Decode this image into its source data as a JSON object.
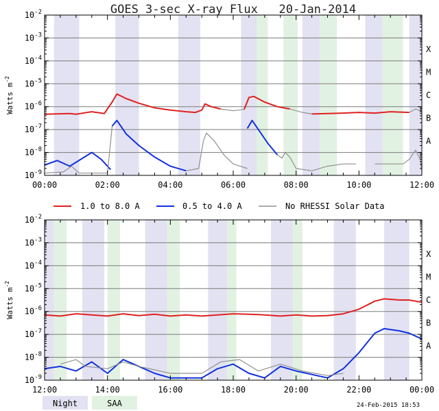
{
  "title": "GOES 3-sec X-ray Flux   20-Jan-2014",
  "ylabel_main": "Watts m",
  "ylabel_sup": "-2",
  "colors": {
    "long": "#e02020",
    "short": "#1030e0",
    "norhessi": "#909090",
    "night": "#e2e2f2",
    "saa": "#e2f2e2",
    "grid": "#7a7a7a",
    "axis": "#000000"
  },
  "legend": {
    "items": [
      {
        "label": "1.0 to 8.0 A",
        "color": "#e02020"
      },
      {
        "label": "0.5 to 4.0 A",
        "color": "#1030e0"
      },
      {
        "label": "No RHESSI Solar Data",
        "color": "#909090"
      }
    ],
    "night_label": "Night",
    "saa_label": "SAA"
  },
  "timestamp": "24-Feb-2015 18:53",
  "chart_data": [
    {
      "type": "line",
      "title": "GOES 3-sec X-ray Flux   20-Jan-2014",
      "ylabel": "Watts m-2",
      "yscale": "log",
      "ylim": [
        -9,
        -2
      ],
      "xlim": [
        0,
        12
      ],
      "x_ticks": [
        "00:00",
        "02:00",
        "04:00",
        "06:00",
        "08:00",
        "10:00",
        "12:00"
      ],
      "y_ticks": [
        "10-9",
        "10-8",
        "10-7",
        "10-6",
        "10-5",
        "10-4",
        "10-3",
        "10-2"
      ],
      "flare_classes": [
        "A",
        "B",
        "C",
        "M",
        "X"
      ],
      "night": [
        [
          0.3,
          1.1
        ],
        [
          2.25,
          3.0
        ],
        [
          4.25,
          4.95
        ],
        [
          6.25,
          6.75
        ],
        [
          8.2,
          8.75
        ],
        [
          10.2,
          10.75
        ],
        [
          11.6,
          12.0
        ]
      ],
      "saa": [
        [
          6.75,
          7.1
        ],
        [
          7.6,
          8.05
        ],
        [
          8.75,
          9.3
        ],
        [
          10.75,
          11.4
        ]
      ],
      "series": [
        {
          "name": "1.0 to 8.0 A",
          "points": [
            [
              0.0,
              -6.33
            ],
            [
              0.8,
              -6.3
            ],
            [
              1.0,
              -6.33
            ],
            [
              1.5,
              -6.22
            ],
            [
              1.9,
              -6.3
            ],
            [
              2.15,
              -5.8
            ],
            [
              2.3,
              -5.45
            ],
            [
              2.6,
              -5.65
            ],
            [
              3.0,
              -5.85
            ],
            [
              3.5,
              -6.05
            ],
            [
              4.0,
              -6.15
            ],
            [
              4.5,
              -6.22
            ],
            [
              4.8,
              -6.25
            ],
            [
              5.0,
              -6.15
            ],
            [
              5.1,
              -5.88
            ],
            [
              5.3,
              -6.0
            ],
            [
              5.6,
              -6.1
            ]
          ]
        },
        {
          "name": "1.0 to 8.0 A",
          "points": [
            [
              6.35,
              -6.12
            ],
            [
              6.5,
              -5.6
            ],
            [
              6.65,
              -5.55
            ],
            [
              7.0,
              -5.8
            ],
            [
              7.4,
              -6.0
            ],
            [
              7.8,
              -6.1
            ]
          ]
        },
        {
          "name": "1.0 to 8.0 A",
          "points": [
            [
              8.5,
              -6.32
            ],
            [
              9.0,
              -6.3
            ],
            [
              9.5,
              -6.28
            ],
            [
              10.0,
              -6.25
            ],
            [
              10.5,
              -6.28
            ],
            [
              11.0,
              -6.22
            ],
            [
              11.6,
              -6.25
            ]
          ]
        },
        {
          "name": "No RHESSI Solar Data",
          "points": [
            [
              5.6,
              -6.1
            ],
            [
              6.0,
              -6.18
            ],
            [
              6.35,
              -6.12
            ]
          ]
        },
        {
          "name": "No RHESSI Solar Data",
          "points": [
            [
              7.8,
              -6.1
            ],
            [
              8.2,
              -6.25
            ],
            [
              8.5,
              -6.32
            ]
          ]
        },
        {
          "name": "No RHESSI Solar Data",
          "points": [
            [
              11.6,
              -6.25
            ],
            [
              11.8,
              -6.1
            ],
            [
              12.0,
              -6.22
            ]
          ]
        },
        {
          "name": "0.5 to 4.0 A",
          "points": [
            [
              0.0,
              -8.55
            ],
            [
              0.4,
              -8.35
            ],
            [
              0.8,
              -8.6
            ],
            [
              1.15,
              -8.3
            ],
            [
              1.5,
              -8.0
            ],
            [
              1.8,
              -8.3
            ],
            [
              2.1,
              -8.75
            ]
          ]
        },
        {
          "name": "0.5 to 4.0 A",
          "points": [
            [
              2.15,
              -6.85
            ],
            [
              2.3,
              -6.6
            ],
            [
              2.6,
              -7.2
            ],
            [
              3.0,
              -7.7
            ],
            [
              3.5,
              -8.2
            ],
            [
              4.0,
              -8.6
            ],
            [
              4.5,
              -8.8
            ]
          ]
        },
        {
          "name": "0.5 to 4.0 A",
          "points": [
            [
              6.45,
              -6.95
            ],
            [
              6.6,
              -6.6
            ],
            [
              6.8,
              -7.0
            ],
            [
              7.1,
              -7.6
            ],
            [
              7.4,
              -8.1
            ]
          ]
        },
        {
          "name": "No RHESSI Solar Data",
          "points": [
            [
              2.0,
              -8.9
            ],
            [
              2.15,
              -6.85
            ]
          ]
        },
        {
          "name": "No RHESSI Solar Data",
          "points": [
            [
              4.5,
              -8.8
            ],
            [
              4.9,
              -8.7
            ],
            [
              5.05,
              -7.5
            ],
            [
              5.15,
              -7.15
            ],
            [
              5.4,
              -7.5
            ],
            [
              5.7,
              -8.1
            ],
            [
              6.0,
              -8.5
            ],
            [
              6.45,
              -8.7
            ]
          ]
        },
        {
          "name": "No RHESSI Solar Data",
          "points": [
            [
              7.4,
              -8.1
            ],
            [
              7.55,
              -8.25
            ],
            [
              7.65,
              -8.0
            ],
            [
              7.8,
              -8.2
            ],
            [
              8.0,
              -8.7
            ],
            [
              8.5,
              -8.8
            ],
            [
              9.0,
              -8.6
            ],
            [
              9.5,
              -8.5
            ],
            [
              9.9,
              -8.5
            ]
          ]
        },
        {
          "name": "No RHESSI Solar Data",
          "points": [
            [
              10.5,
              -8.5
            ],
            [
              11.0,
              -8.5
            ],
            [
              11.4,
              -8.5
            ],
            [
              11.6,
              -8.3
            ],
            [
              11.8,
              -7.9
            ],
            [
              11.95,
              -8.3
            ],
            [
              12.0,
              -8.8
            ]
          ]
        },
        {
          "name": "No RHESSI Solar Data",
          "points": [
            [
              0.0,
              -8.9
            ],
            [
              0.6,
              -8.85
            ],
            [
              0.85,
              -8.6
            ],
            [
              1.1,
              -8.9
            ],
            [
              1.7,
              -8.9
            ],
            [
              2.0,
              -8.9
            ]
          ]
        }
      ]
    },
    {
      "type": "line",
      "ylabel": "Watts m-2",
      "yscale": "log",
      "ylim": [
        -9,
        -2
      ],
      "xlim": [
        12,
        24
      ],
      "x_ticks": [
        "12:00",
        "14:00",
        "16:00",
        "18:00",
        "20:00",
        "22:00",
        "00:00"
      ],
      "y_ticks": [
        "10-9",
        "10-8",
        "10-7",
        "10-6",
        "10-5",
        "10-4",
        "10-3",
        "10-2"
      ],
      "flare_classes": [
        "A",
        "B",
        "C",
        "M",
        "X"
      ],
      "night": [
        [
          12.0,
          12.3
        ],
        [
          13.2,
          13.9
        ],
        [
          15.2,
          15.9
        ],
        [
          17.2,
          17.9
        ],
        [
          19.2,
          19.9
        ],
        [
          21.2,
          21.9
        ],
        [
          22.8,
          23.6
        ]
      ],
      "saa": [
        [
          12.3,
          12.7
        ],
        [
          14.0,
          14.4
        ],
        [
          15.9,
          16.3
        ],
        [
          17.8,
          18.1
        ],
        [
          19.9,
          20.2
        ]
      ],
      "series": [
        {
          "name": "1.0 to 8.0 A",
          "points": [
            [
              12.0,
              -6.15
            ],
            [
              12.5,
              -6.2
            ],
            [
              13.0,
              -6.1
            ],
            [
              13.5,
              -6.15
            ],
            [
              14.0,
              -6.2
            ],
            [
              14.5,
              -6.1
            ],
            [
              15.0,
              -6.18
            ],
            [
              15.5,
              -6.12
            ],
            [
              16.0,
              -6.2
            ],
            [
              16.5,
              -6.15
            ],
            [
              17.0,
              -6.2
            ],
            [
              17.5,
              -6.15
            ],
            [
              18.0,
              -6.1
            ],
            [
              18.5,
              -6.12
            ],
            [
              19.0,
              -6.15
            ],
            [
              19.5,
              -6.2
            ],
            [
              20.0,
              -6.15
            ],
            [
              20.5,
              -6.2
            ],
            [
              21.0,
              -6.18
            ],
            [
              21.5,
              -6.1
            ],
            [
              22.0,
              -5.9
            ],
            [
              22.5,
              -5.55
            ],
            [
              22.8,
              -5.45
            ],
            [
              23.3,
              -5.5
            ],
            [
              23.6,
              -5.5
            ],
            [
              24.0,
              -5.6
            ]
          ]
        },
        {
          "name": "0.5 to 4.0 A",
          "points": [
            [
              12.0,
              -8.5
            ],
            [
              12.5,
              -8.4
            ],
            [
              13.0,
              -8.6
            ],
            [
              13.5,
              -8.2
            ],
            [
              14.0,
              -8.7
            ],
            [
              14.5,
              -8.1
            ],
            [
              15.0,
              -8.4
            ],
            [
              15.5,
              -8.7
            ],
            [
              16.0,
              -8.9
            ],
            [
              17.0,
              -8.9
            ],
            [
              17.5,
              -8.5
            ],
            [
              18.0,
              -8.3
            ],
            [
              18.5,
              -8.7
            ],
            [
              19.0,
              -8.9
            ],
            [
              19.5,
              -8.4
            ],
            [
              20.0,
              -8.6
            ],
            [
              21.0,
              -8.9
            ],
            [
              21.5,
              -8.5
            ],
            [
              22.0,
              -7.8
            ],
            [
              22.5,
              -6.95
            ],
            [
              22.8,
              -6.75
            ],
            [
              23.3,
              -6.85
            ],
            [
              23.6,
              -6.95
            ],
            [
              24.0,
              -7.2
            ]
          ]
        },
        {
          "name": "No RHESSI Solar Data",
          "points": [
            [
              12.5,
              -8.3
            ],
            [
              13.0,
              -8.1
            ],
            [
              13.3,
              -8.4
            ],
            [
              14.0,
              -8.5
            ],
            [
              14.5,
              -8.2
            ],
            [
              15.0,
              -8.4
            ],
            [
              16.0,
              -8.7
            ],
            [
              17.0,
              -8.7
            ],
            [
              17.6,
              -8.2
            ],
            [
              18.2,
              -8.1
            ],
            [
              18.8,
              -8.6
            ],
            [
              19.5,
              -8.3
            ],
            [
              20.2,
              -8.6
            ],
            [
              21.0,
              -8.8
            ],
            [
              21.5,
              -8.7
            ]
          ]
        }
      ]
    }
  ]
}
